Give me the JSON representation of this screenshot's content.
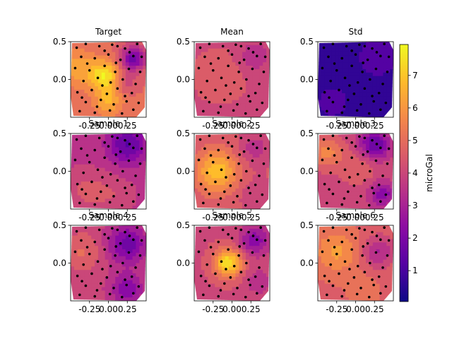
{
  "chart_data": {
    "type": "heatmap",
    "layout": "3x3 grid of filled-contour panels with scattered black sample points, shared vertical colorbar on the right",
    "colormap": "plasma",
    "colorbar": {
      "label": "microGal",
      "range": [
        0.05,
        7.95
      ],
      "ticks": [
        1,
        2,
        3,
        4,
        5,
        6,
        7
      ]
    },
    "axes": {
      "x_range": [
        -0.5,
        0.5
      ],
      "y_range": [
        -0.5,
        0.5
      ],
      "x_ticks": [
        "-0.25",
        "0.00",
        "0.25"
      ],
      "y_ticks": [
        "0.5",
        "0.0"
      ]
    },
    "points": [
      [
        -0.42,
        0.42
      ],
      [
        -0.3,
        0.47
      ],
      [
        -0.12,
        0.44
      ],
      [
        0.05,
        0.46
      ],
      [
        0.22,
        0.41
      ],
      [
        0.38,
        0.47
      ],
      [
        -0.36,
        0.3
      ],
      [
        -0.18,
        0.28
      ],
      [
        0.0,
        0.33
      ],
      [
        0.16,
        0.26
      ],
      [
        0.33,
        0.31
      ],
      [
        -0.44,
        0.15
      ],
      [
        -0.25,
        0.12
      ],
      [
        -0.05,
        0.18
      ],
      [
        0.09,
        0.1
      ],
      [
        0.27,
        0.14
      ],
      [
        0.42,
        0.1
      ],
      [
        -0.33,
        -0.02
      ],
      [
        -0.14,
        0.02
      ],
      [
        0.03,
        -0.04
      ],
      [
        0.19,
        0.0
      ],
      [
        0.36,
        -0.06
      ],
      [
        -0.41,
        -0.17
      ],
      [
        -0.22,
        -0.14
      ],
      [
        -0.02,
        -0.19
      ],
      [
        0.12,
        -0.12
      ],
      [
        0.31,
        -0.18
      ],
      [
        -0.3,
        -0.3
      ],
      [
        -0.1,
        -0.27
      ],
      [
        0.07,
        -0.33
      ],
      [
        0.24,
        -0.29
      ],
      [
        0.4,
        -0.31
      ],
      [
        -0.38,
        -0.42
      ],
      [
        -0.18,
        -0.44
      ],
      [
        0.02,
        -0.41
      ],
      [
        0.18,
        -0.45
      ],
      [
        0.33,
        -0.4
      ],
      [
        -0.05,
        0.38
      ],
      [
        0.28,
        0.36
      ],
      [
        -0.28,
        0.21
      ],
      [
        0.1,
        0.22
      ],
      [
        -0.08,
        -0.08
      ],
      [
        0.22,
        -0.22
      ],
      [
        -0.35,
        -0.24
      ],
      [
        0.44,
        0.3
      ],
      [
        -0.15,
        -0.36
      ],
      [
        0.12,
        0.44
      ]
    ],
    "panels": [
      {
        "title": "Target",
        "peaks": [
          [
            -0.42,
            0.15,
            1.4,
            0.18
          ],
          [
            -0.05,
            0.05,
            2.6,
            0.14
          ],
          [
            0.0,
            -0.28,
            1.6,
            0.14
          ],
          [
            0.33,
            0.28,
            -3.2,
            0.12
          ],
          [
            0.22,
            -0.05,
            -1.1,
            0.1
          ]
        ],
        "base": 4.9
      },
      {
        "title": "Mean",
        "peaks": [
          [
            -0.15,
            0.05,
            0.6,
            0.25
          ],
          [
            0.28,
            0.3,
            -0.8,
            0.15
          ]
        ],
        "base": 4.1
      },
      {
        "title": "Std",
        "peaks": [
          [
            0.3,
            0.3,
            0.4,
            0.2
          ],
          [
            -0.3,
            -0.3,
            0.3,
            0.2
          ]
        ],
        "base": 0.7
      },
      {
        "title": "Sample 1",
        "peaks": [
          [
            0.25,
            0.35,
            -2.2,
            0.18
          ],
          [
            -0.3,
            -0.25,
            0.8,
            0.18
          ],
          [
            0.05,
            -0.3,
            0.6,
            0.18
          ]
        ],
        "base": 3.6
      },
      {
        "title": "Sample 2",
        "peaks": [
          [
            -0.2,
            0.0,
            2.5,
            0.2
          ],
          [
            0.3,
            0.3,
            -1.0,
            0.15
          ],
          [
            0.3,
            -0.3,
            -0.6,
            0.15
          ]
        ],
        "base": 4.4
      },
      {
        "title": "Sample 3",
        "peaks": [
          [
            -0.38,
            0.25,
            1.6,
            0.15
          ],
          [
            0.25,
            0.35,
            -2.6,
            0.14
          ],
          [
            0.35,
            -0.3,
            -1.8,
            0.12
          ],
          [
            0.05,
            0.05,
            0.8,
            0.18
          ]
        ],
        "base": 4.0
      },
      {
        "title": "Sample 4",
        "peaks": [
          [
            0.25,
            0.25,
            -2.2,
            0.18
          ],
          [
            0.25,
            -0.35,
            -1.8,
            0.15
          ],
          [
            -0.35,
            0.15,
            1.0,
            0.18
          ]
        ],
        "base": 3.9
      },
      {
        "title": "Sample 5",
        "peaks": [
          [
            -0.05,
            0.0,
            3.4,
            0.13
          ],
          [
            0.3,
            0.3,
            -2.0,
            0.14
          ],
          [
            0.35,
            -0.25,
            -1.0,
            0.12
          ]
        ],
        "base": 4.2
      },
      {
        "title": "Sample 6",
        "peaks": [
          [
            -0.25,
            0.15,
            1.4,
            0.2
          ],
          [
            0.3,
            0.15,
            -1.6,
            0.15
          ],
          [
            0.1,
            -0.35,
            0.5,
            0.15
          ]
        ],
        "base": 4.7
      }
    ]
  }
}
